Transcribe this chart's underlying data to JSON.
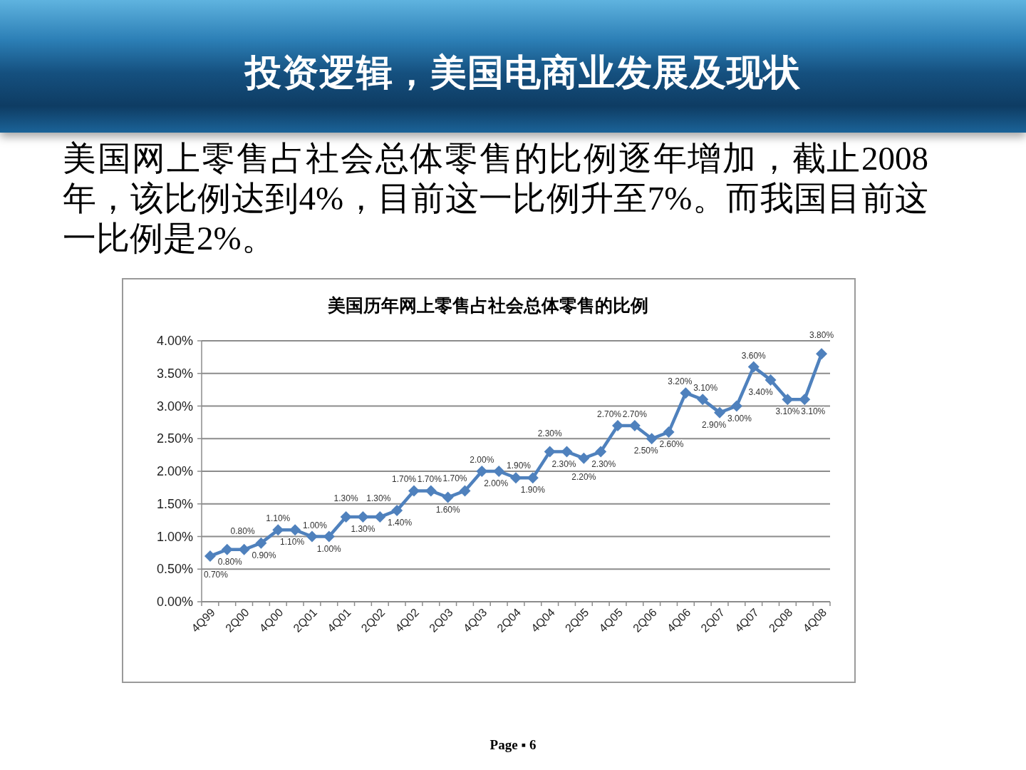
{
  "chart_data": {
    "type": "line",
    "title": "美国历年网上零售占社会总体零售的比例",
    "annotations": [
      "投资逻辑，美国电商业发展及现状",
      "美国网上零售占社会总体零售的比例逐年增加，截止2008年，该比例达到4%，目前这一比例升至7%。而我国目前这一比例是2%。",
      "Page ▪ 6"
    ],
    "categories": [
      "4Q99",
      null,
      "2Q00",
      null,
      "4Q00",
      null,
      "2Q01",
      null,
      "4Q01",
      null,
      "2Q02",
      null,
      "4Q02",
      null,
      "2Q03",
      null,
      "4Q03",
      null,
      "2Q04",
      null,
      "4Q04",
      null,
      "2Q05",
      null,
      "4Q05",
      null,
      "2Q06",
      null,
      "4Q06",
      null,
      "2Q07",
      null,
      "4Q07",
      null,
      "2Q08",
      null,
      "4Q08"
    ],
    "series": [
      {
        "color": "#4f81bd",
        "values": [
          0.7,
          0.8,
          0.8,
          0.9,
          1.1,
          1.1,
          1.0,
          1.0,
          1.3,
          1.3,
          1.3,
          1.4,
          1.7,
          1.7,
          1.6,
          1.7,
          2.0,
          2.0,
          1.9,
          1.9,
          2.3,
          2.3,
          2.2,
          2.3,
          2.7,
          2.7,
          2.5,
          2.6,
          3.2,
          3.1,
          2.9,
          3.0,
          3.6,
          3.4,
          3.1,
          3.1,
          3.8
        ],
        "value_labels": [
          "0.70%",
          "0.80%",
          "0.80%",
          "0.90%",
          "1.10%",
          "1.10%",
          "1.00%",
          "1.00%",
          "1.30%",
          "1.30%",
          "1.30%",
          "1.40%",
          "1.70%",
          "1.70%",
          "1.60%",
          "1.70%",
          "2.00%",
          "2.00%",
          "1.90%",
          "1.90%",
          "2.30%",
          "2.30%",
          "2.20%",
          "2.30%",
          "2.70%",
          "2.70%",
          "2.50%",
          "2.60%",
          "3.20%",
          "3.10%",
          "2.90%",
          "3.00%",
          "3.60%",
          "3.40%",
          "3.10%",
          "3.10%",
          "3.80%"
        ]
      }
    ],
    "ylim": [
      0,
      4
    ],
    "yticks": [
      {
        "value": 0,
        "label": "0.00%"
      },
      {
        "value": 0.5,
        "label": "0.50%"
      },
      {
        "value": 1,
        "label": "1.00%"
      },
      {
        "value": 1.5,
        "label": "1.50%"
      },
      {
        "value": 2,
        "label": "2.00%"
      },
      {
        "value": 2.5,
        "label": "2.50%"
      },
      {
        "value": 3,
        "label": "3.00%"
      },
      {
        "value": 3.5,
        "label": "3.50%"
      },
      {
        "value": 4,
        "label": "4.00%"
      }
    ],
    "grid": "y",
    "marker": "diamond",
    "line_style": "solid"
  }
}
